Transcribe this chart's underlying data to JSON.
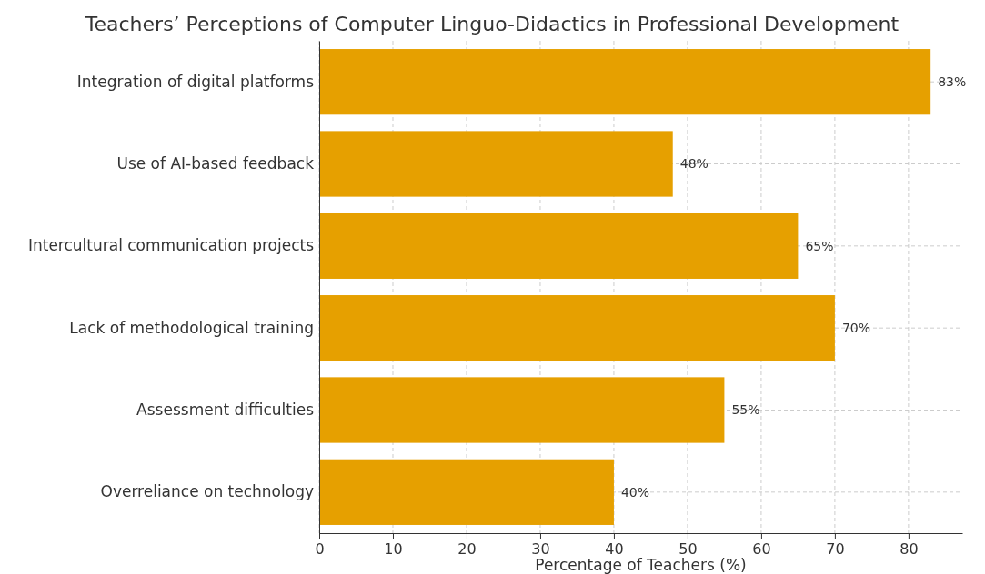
{
  "chart_data": {
    "type": "bar",
    "orientation": "horizontal",
    "title": "Teachers’ Perceptions of Computer Linguo-Didactics in Professional Development",
    "xlabel": "Percentage of Teachers (%)",
    "categories": [
      "Integration of digital platforms",
      "Use of AI-based feedback",
      "Intercultural communication projects",
      "Lack of methodological training",
      "Assessment difficulties",
      "Overreliance on technology"
    ],
    "values": [
      83,
      48,
      65,
      70,
      55,
      40
    ],
    "value_labels": [
      "83%",
      "48%",
      "65%",
      "70%",
      "55%",
      "40%"
    ],
    "color": "#e6a000",
    "xlim": [
      0,
      87.3
    ],
    "xticks": [
      0,
      10,
      20,
      30,
      40,
      50,
      60,
      70,
      80
    ],
    "grid": true
  }
}
